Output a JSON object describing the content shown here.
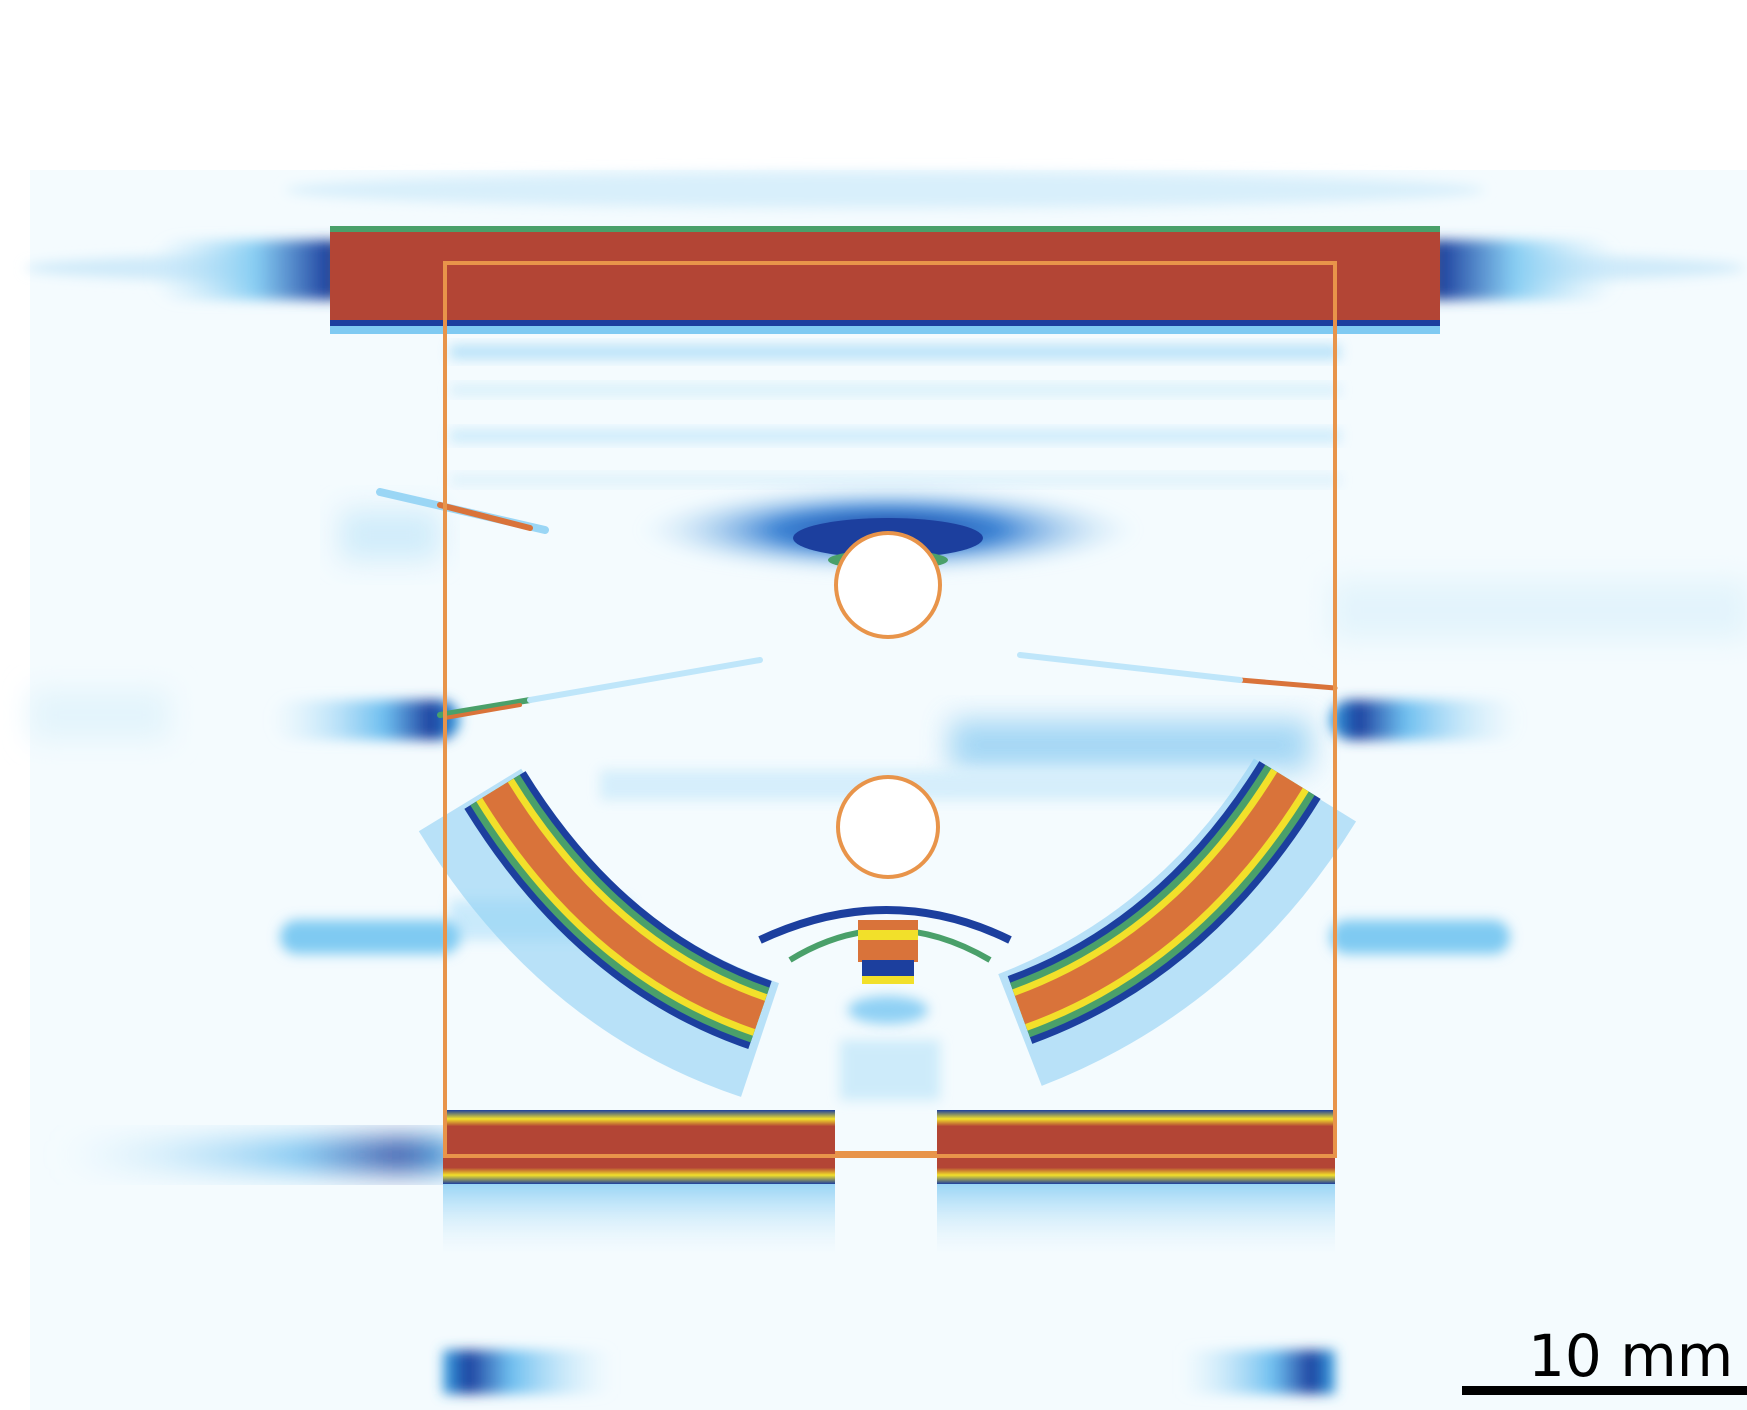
{
  "scale_bar": {
    "label": "10 mm"
  },
  "colors": {
    "background": "#ffffff",
    "outline": "#e8944a",
    "saturated": "#b34535",
    "orange": "#d9733a",
    "yellow": "#f2e02a",
    "green": "#4aa06a",
    "teal": "#1f7a7a",
    "dark_blue": "#1c3f9e",
    "mid_blue": "#3aa6e6",
    "light_blue": "#bfe6fa"
  }
}
